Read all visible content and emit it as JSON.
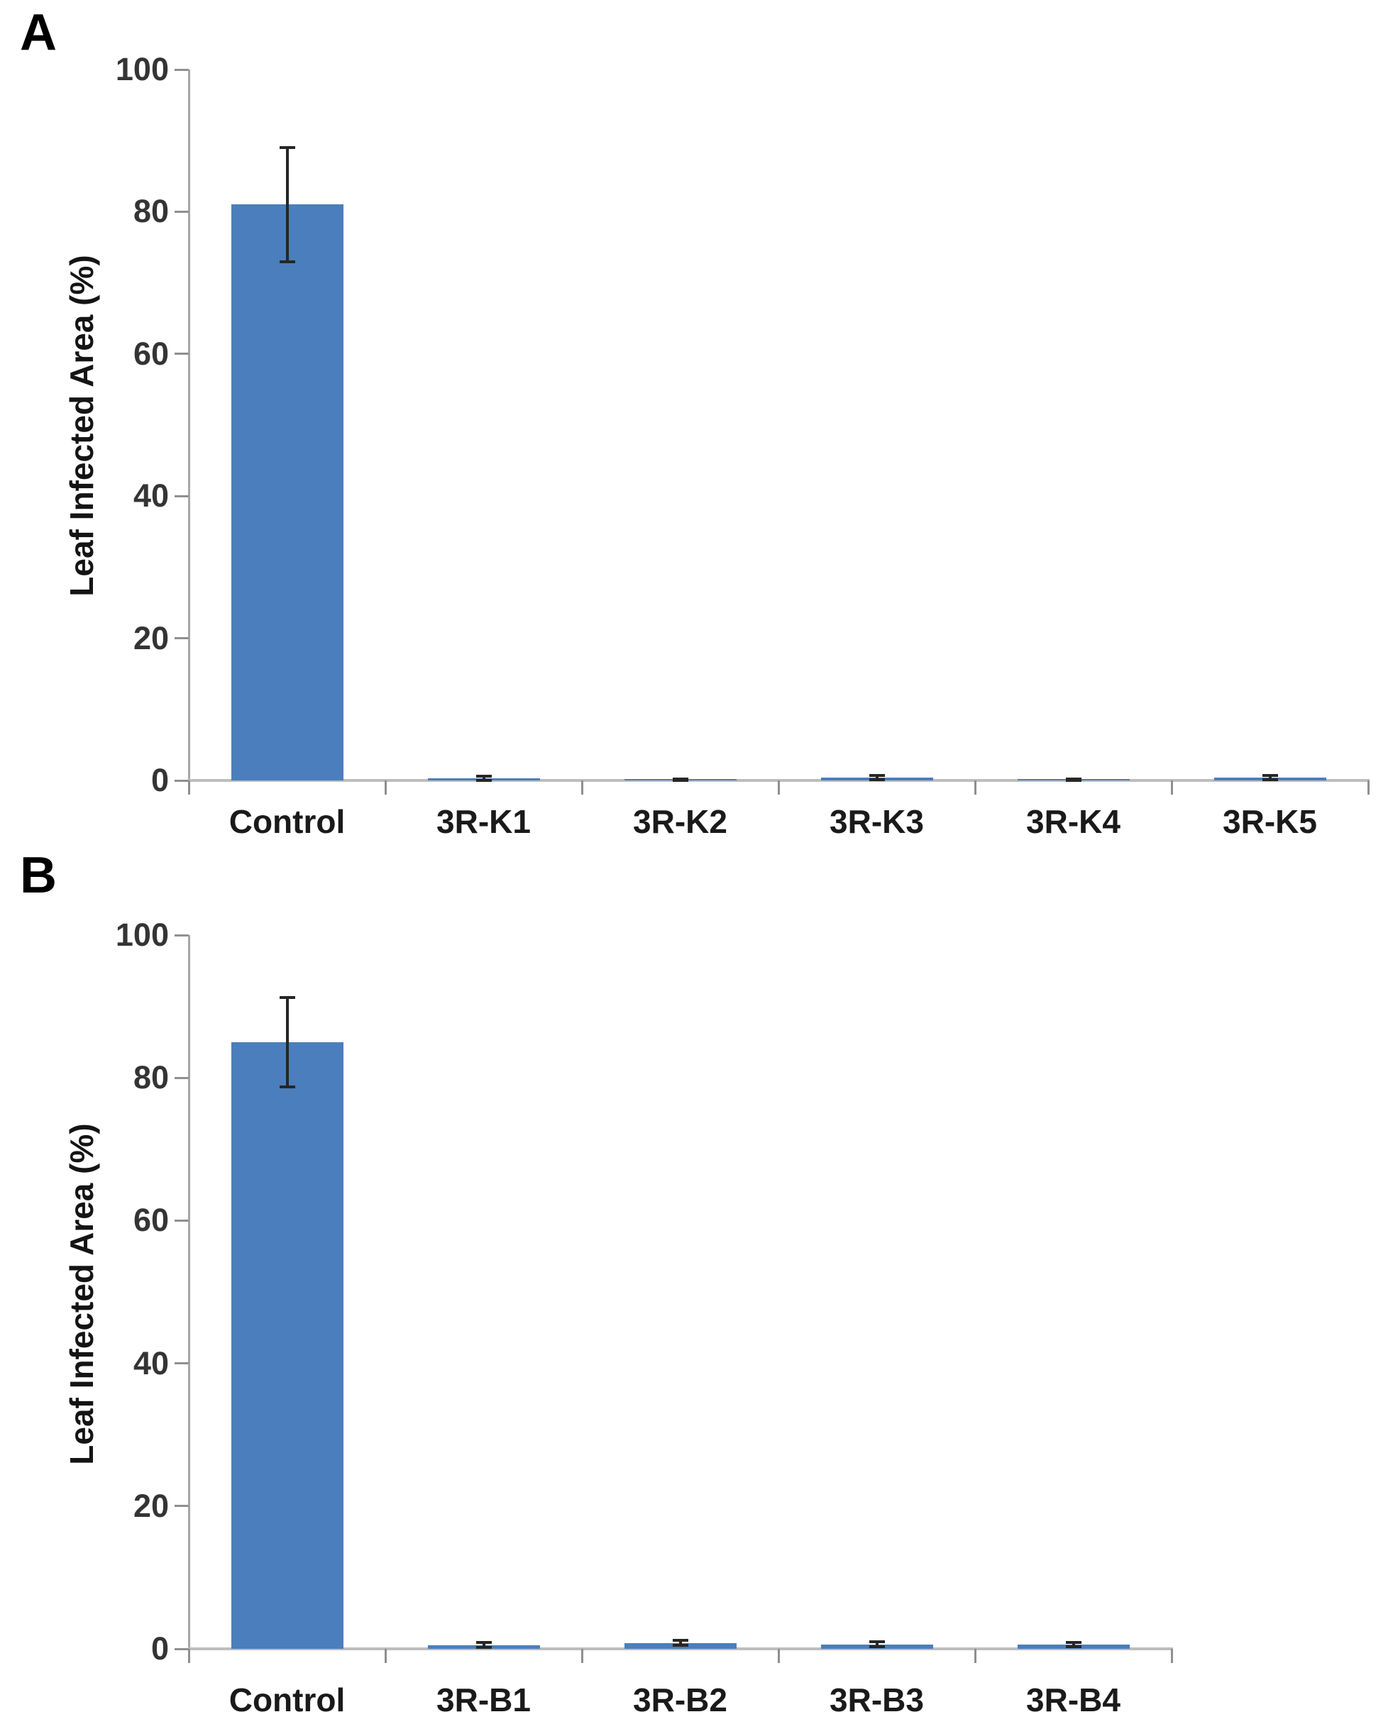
{
  "figure": {
    "background": "#ffffff",
    "panel_labels": [
      "A",
      "B"
    ]
  },
  "chart_data": [
    {
      "type": "bar",
      "panel_label": "A",
      "title": "",
      "xlabel": "",
      "ylabel": "Leaf Infected Area (%)",
      "ylim": [
        0,
        100
      ],
      "yticks": [
        0,
        20,
        40,
        60,
        80,
        100
      ],
      "categories": [
        "Control",
        "3R-K1",
        "3R-K2",
        "3R-K3",
        "3R-K4",
        "3R-K5"
      ],
      "values": [
        81,
        0.3,
        0.1,
        0.4,
        0.1,
        0.4
      ],
      "error_bars": [
        8,
        0.3,
        0.1,
        0.3,
        0.1,
        0.3
      ],
      "bar_color": "#4b7ebc",
      "error_color": "#262626",
      "axis_color": "#a6a6a6",
      "grid": false,
      "legend": "none"
    },
    {
      "type": "bar",
      "panel_label": "B",
      "title": "",
      "xlabel": "",
      "ylabel": "Leaf Infected Area (%)",
      "ylim": [
        0,
        100
      ],
      "yticks": [
        0,
        20,
        40,
        60,
        80,
        100
      ],
      "categories": [
        "Control",
        "3R-B1",
        "3R-B2",
        "3R-B3",
        "3R-B4"
      ],
      "values": [
        85,
        0.5,
        0.8,
        0.6,
        0.6
      ],
      "error_bars": [
        6.3,
        0.35,
        0.35,
        0.35,
        0.3
      ],
      "bar_color": "#4b7ebc",
      "error_color": "#262626",
      "axis_color": "#a6a6a6",
      "grid": false,
      "legend": "none"
    }
  ]
}
